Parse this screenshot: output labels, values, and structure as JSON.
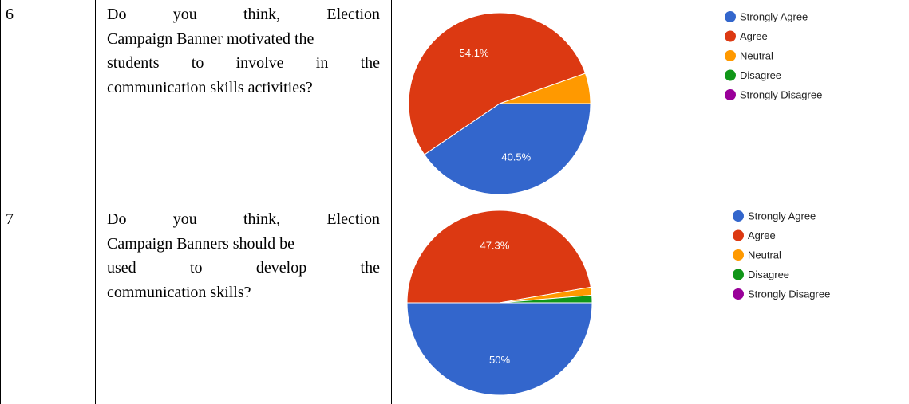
{
  "rows": [
    {
      "number": "6",
      "question_lines": [
        "Do you think, Election",
        "Campaign Banner motivated the",
        "students to involve in the",
        "communication skills activities?"
      ]
    },
    {
      "number": "7",
      "question_lines": [
        "Do you think, Election",
        "Campaign Banners should be",
        "used to develop the",
        "communication skills?"
      ]
    }
  ],
  "chart_data": [
    {
      "type": "pie",
      "legend_position": "top-right",
      "categories": [
        "Strongly Agree",
        "Agree",
        "Neutral",
        "Disagree",
        "Strongly Disagree"
      ],
      "values": [
        40.5,
        54.1,
        5.4,
        0,
        0
      ],
      "data_labels": [
        "40.5%",
        "54.1%",
        "",
        "",
        ""
      ],
      "colors": [
        "#3366cc",
        "#dc3912",
        "#ff9900",
        "#109618",
        "#990099"
      ]
    },
    {
      "type": "pie",
      "legend_position": "top-right",
      "categories": [
        "Strongly Agree",
        "Agree",
        "Neutral",
        "Disagree",
        "Strongly Disagree"
      ],
      "values": [
        50,
        47.3,
        1.4,
        1.3,
        0
      ],
      "data_labels": [
        "50%",
        "47.3%",
        "",
        "",
        ""
      ],
      "colors": [
        "#3366cc",
        "#dc3912",
        "#ff9900",
        "#109618",
        "#990099"
      ]
    }
  ]
}
